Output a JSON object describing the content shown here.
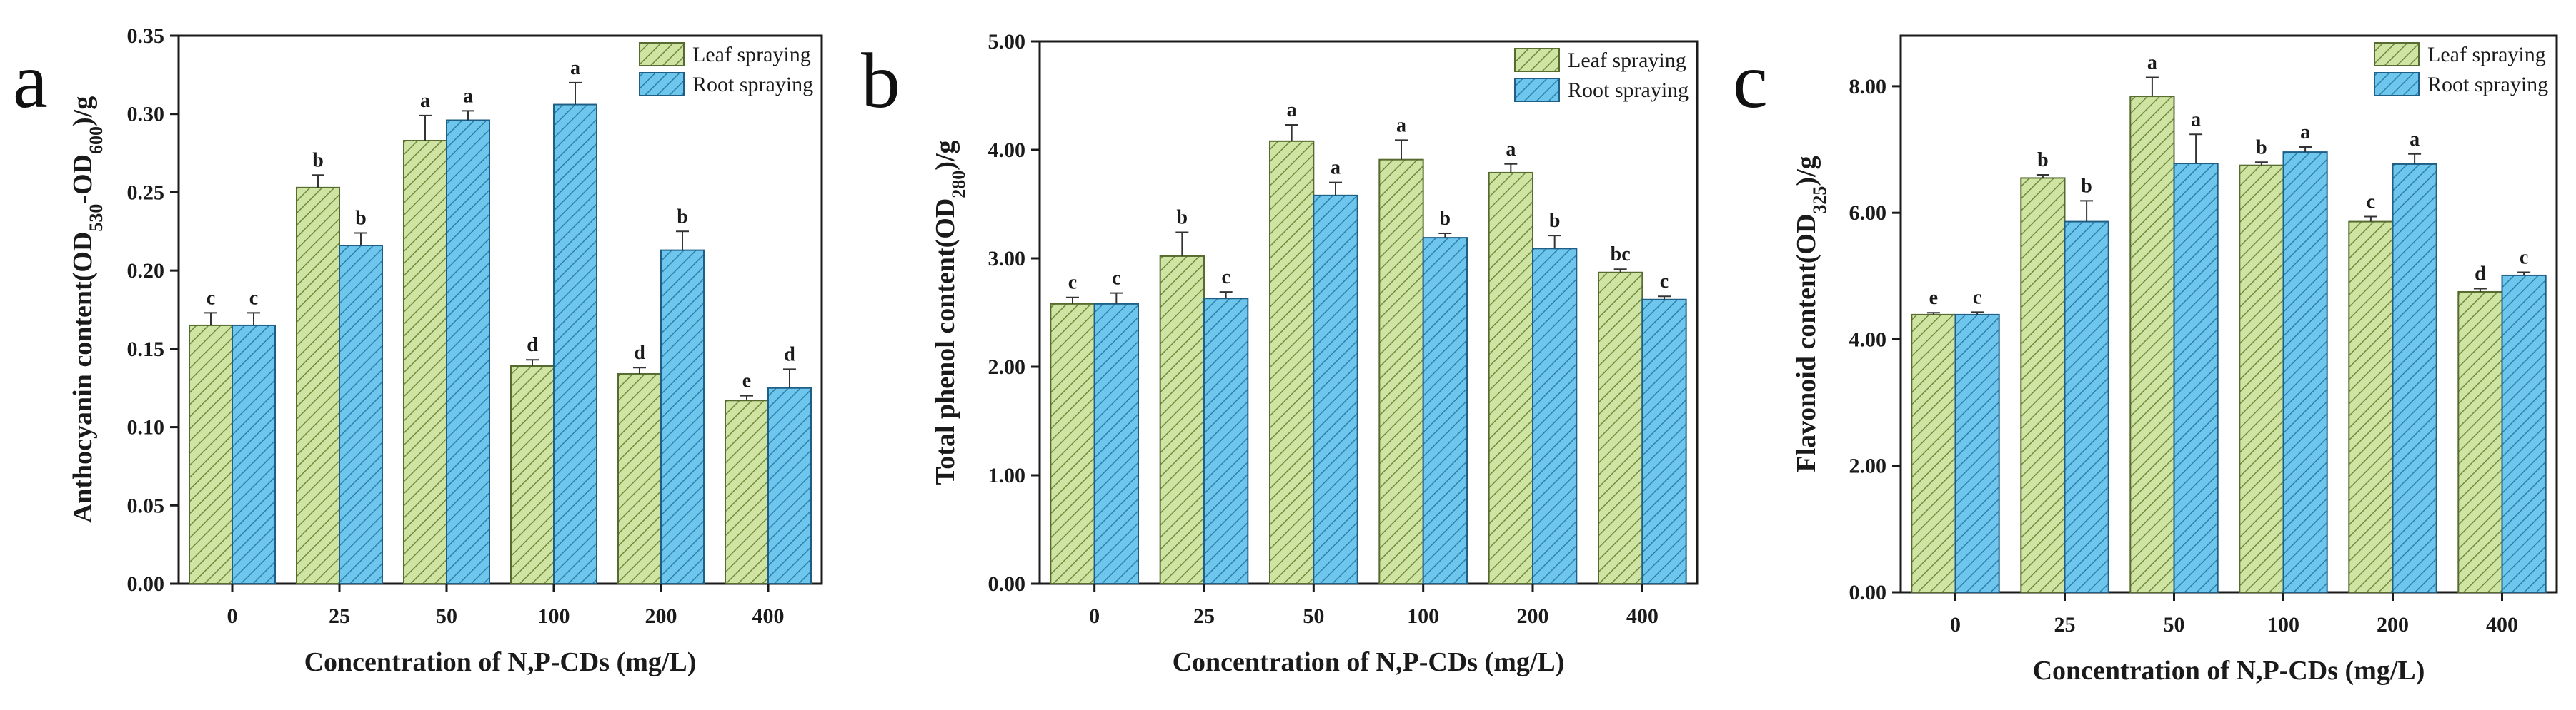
{
  "figure": {
    "legend": [
      "Leaf spraying",
      "Root spraying"
    ],
    "colors": {
      "leaf": "#cfe3a3",
      "root": "#6ec6ec",
      "axis": "#1a1a1a"
    }
  },
  "chart_data": [
    {
      "type": "bar",
      "panel_label": "a",
      "title": "",
      "xlabel": "Concentration of N,P-CDs (mg/L)",
      "ylabel": {
        "main": "Anthocyanin content(OD",
        "sub1": "530",
        "mid": "-OD",
        "sub2": "600",
        "tail": ")/g"
      },
      "categories": [
        "0",
        "25",
        "50",
        "100",
        "200",
        "400"
      ],
      "ylim": [
        0,
        0.35
      ],
      "yticks": [
        0,
        0.05,
        0.1,
        0.15,
        0.2,
        0.25,
        0.3,
        0.35
      ],
      "ytick_labels": [
        "0.00",
        "0.05",
        "0.10",
        "0.15",
        "0.20",
        "0.25",
        "0.30",
        "0.35"
      ],
      "series": [
        {
          "name": "Leaf spraying",
          "values": [
            0.165,
            0.253,
            0.283,
            0.139,
            0.134,
            0.117
          ],
          "errors": [
            0.008,
            0.008,
            0.016,
            0.004,
            0.004,
            0.003
          ],
          "letters": [
            "c",
            "b",
            "a",
            "d",
            "d",
            "e"
          ]
        },
        {
          "name": "Root spraying",
          "values": [
            0.165,
            0.216,
            0.296,
            0.306,
            0.213,
            0.125
          ],
          "errors": [
            0.008,
            0.008,
            0.006,
            0.014,
            0.012,
            0.012
          ],
          "letters": [
            "c",
            "b",
            "a",
            "a",
            "b",
            "d"
          ]
        }
      ]
    },
    {
      "type": "bar",
      "panel_label": "b",
      "title": "",
      "xlabel": "Concentration of N,P-CDs (mg/L)",
      "ylabel": {
        "main": "Total phenol content(OD",
        "sub1": "280",
        "mid": "",
        "sub2": "",
        "tail": ")/g"
      },
      "categories": [
        "0",
        "25",
        "50",
        "100",
        "200",
        "400"
      ],
      "ylim": [
        0,
        5
      ],
      "yticks": [
        0,
        1,
        2,
        3,
        4,
        5
      ],
      "ytick_labels": [
        "0.00",
        "1.00",
        "2.00",
        "3.00",
        "4.00",
        "5.00"
      ],
      "series": [
        {
          "name": "Leaf spraying",
          "values": [
            2.58,
            3.02,
            4.08,
            3.91,
            3.79,
            2.87
          ],
          "errors": [
            0.06,
            0.22,
            0.15,
            0.18,
            0.08,
            0.03
          ],
          "letters": [
            "c",
            "b",
            "a",
            "a",
            "a",
            "bc"
          ]
        },
        {
          "name": "Root spraying",
          "values": [
            2.58,
            2.63,
            3.58,
            3.19,
            3.09,
            2.62
          ],
          "errors": [
            0.1,
            0.06,
            0.12,
            0.04,
            0.12,
            0.03
          ],
          "letters": [
            "c",
            "c",
            "a",
            "b",
            "b",
            "c"
          ]
        }
      ]
    },
    {
      "type": "bar",
      "panel_label": "c",
      "title": "",
      "xlabel": "Concentration of N,P-CDs (mg/L)",
      "ylabel": {
        "main": "Flavonoid content(OD",
        "sub1": "325",
        "mid": "",
        "sub2": "",
        "tail": ")/g"
      },
      "categories": [
        "0",
        "25",
        "50",
        "100",
        "200",
        "400"
      ],
      "ylim": [
        0,
        8.8
      ],
      "yticks": [
        0,
        2,
        4,
        6,
        8
      ],
      "ytick_labels": [
        "0.00",
        "2.00",
        "4.00",
        "6.00",
        "8.00"
      ],
      "series": [
        {
          "name": "Leaf spraying",
          "values": [
            4.39,
            6.55,
            7.84,
            6.75,
            5.86,
            4.75
          ],
          "errors": [
            0.03,
            0.05,
            0.3,
            0.05,
            0.08,
            0.05
          ],
          "letters": [
            "e",
            "b",
            "a",
            "b",
            "c",
            "d"
          ]
        },
        {
          "name": "Root spraying",
          "values": [
            4.39,
            5.86,
            6.78,
            6.96,
            6.77,
            5.01
          ],
          "errors": [
            0.04,
            0.33,
            0.46,
            0.08,
            0.16,
            0.05
          ],
          "letters": [
            "c",
            "b",
            "a",
            "a",
            "a",
            "c"
          ]
        }
      ]
    }
  ]
}
